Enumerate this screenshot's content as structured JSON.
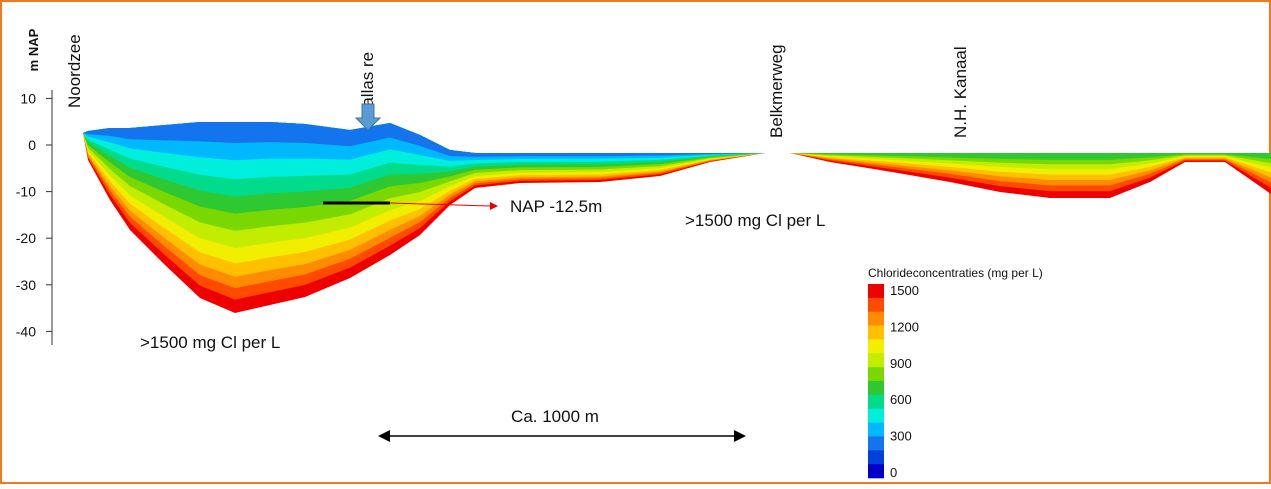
{
  "axis": {
    "label": "m NAP",
    "ticks": [
      10,
      0,
      -10,
      -20,
      -30,
      -40
    ]
  },
  "locations": [
    "Noordzee",
    "Pallas re",
    "Belkmerweg",
    "N.H. Kanaal"
  ],
  "annotations": {
    "depth_line": "NAP -12.5m",
    "salt_right": ">1500 mg Cl per L",
    "salt_left": ">1500 mg Cl per L",
    "scale": "Ca. 1000 m"
  },
  "legend": {
    "title": "Chlorideconcentraties (mg per L)",
    "labels": [
      1500,
      1200,
      900,
      600,
      300,
      0
    ],
    "colors": [
      "#ee0000",
      "#ff4a00",
      "#ff8c00",
      "#ffc000",
      "#f2ee00",
      "#c2ec00",
      "#7ad800",
      "#2ec832",
      "#00dc8c",
      "#00eedc",
      "#00b8ff",
      "#1474ee",
      "#0040dc",
      "#0000c8"
    ]
  }
}
